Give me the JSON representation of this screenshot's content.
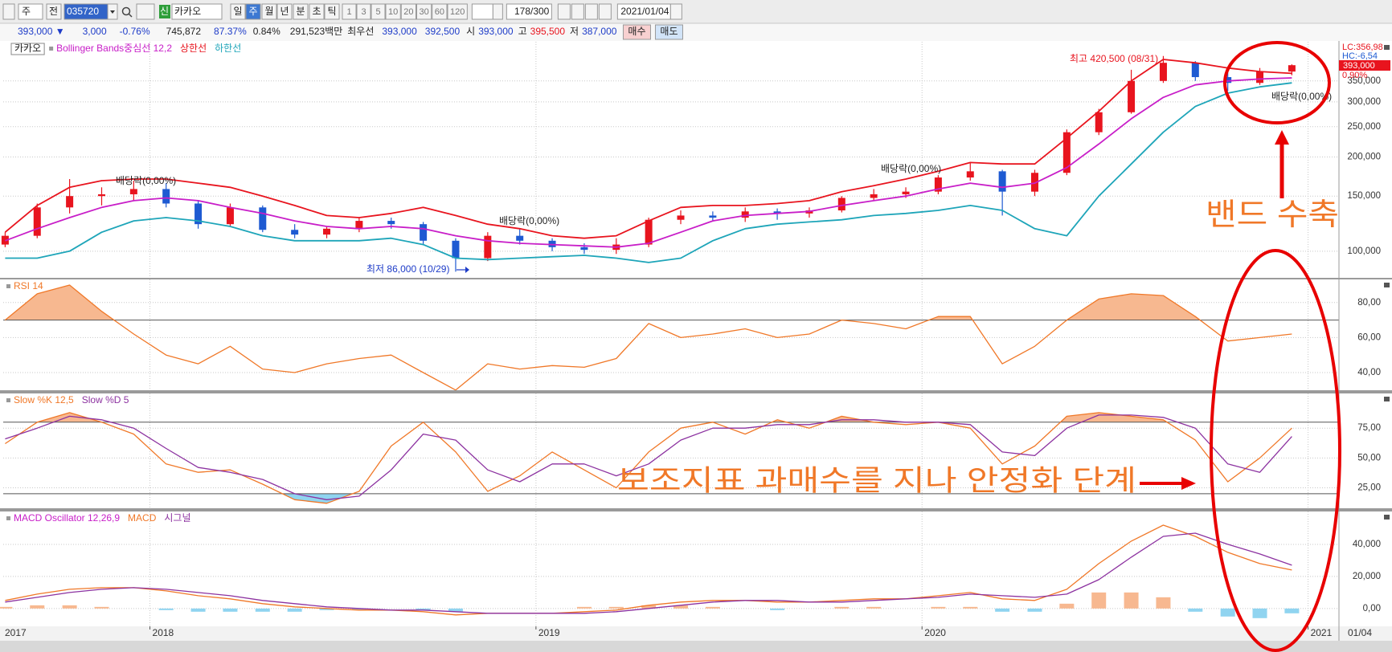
{
  "toolbar": {
    "period_type": "주",
    "scope": "전",
    "code": "035720",
    "market_badge": "신",
    "name": "카카오",
    "periods": [
      "일",
      "주",
      "월",
      "년",
      "분",
      "초",
      "틱"
    ],
    "intervals": [
      "1",
      "3",
      "5",
      "10",
      "20",
      "30",
      "60",
      "120"
    ],
    "count": "178/300",
    "date": "2021/01/04"
  },
  "quote": {
    "price": "393,000 ▼",
    "change": "3,000",
    "change_pct": "-0.76%",
    "volume": "745,872",
    "volume_ratio": "87.37%",
    "turnover": "0.84%",
    "trade_value": "291,523백만",
    "best_label": "최우선",
    "ask": "393,000",
    "bid": "392,500",
    "open_label": "시",
    "open": "393,000",
    "high_label": "고",
    "high": "395,500",
    "low_label": "저",
    "low": "387,000",
    "buy": "매수",
    "sell": "매도"
  },
  "time_axis": {
    "xlim": [
      2017.62,
      2021.08
    ],
    "xticks": [
      2018,
      2019,
      2020,
      2021
    ],
    "start_label": "2017",
    "end_label": "01/04"
  },
  "chart_data": [
    {
      "type": "candlestick",
      "title": "카카오",
      "log_scale": true,
      "grid": true,
      "x": [
        2017.625,
        2017.708,
        2017.792,
        2017.875,
        2017.958,
        2018.042,
        2018.125,
        2018.208,
        2018.292,
        2018.375,
        2018.458,
        2018.542,
        2018.625,
        2018.708,
        2018.792,
        2018.875,
        2018.958,
        2019.042,
        2019.125,
        2019.208,
        2019.292,
        2019.375,
        2019.458,
        2019.542,
        2019.625,
        2019.708,
        2019.792,
        2019.875,
        2019.958,
        2020.042,
        2020.125,
        2020.208,
        2020.292,
        2020.375,
        2020.458,
        2020.542,
        2020.625,
        2020.708,
        2020.792,
        2020.875,
        2020.958
      ],
      "open": [
        105000,
        112000,
        138000,
        150000,
        152000,
        158000,
        142000,
        122000,
        138000,
        117000,
        113000,
        118000,
        125000,
        122000,
        108000,
        95000,
        112000,
        108000,
        103000,
        101000,
        105000,
        126000,
        130000,
        128000,
        134000,
        132000,
        135000,
        148000,
        152000,
        155000,
        172000,
        180000,
        155000,
        178000,
        240000,
        278000,
        350000,
        400000,
        360000,
        345000,
        375000
      ],
      "high": [
        115000,
        142000,
        170000,
        160000,
        168000,
        165000,
        145000,
        142000,
        140000,
        122000,
        120000,
        128000,
        128000,
        124000,
        110000,
        115000,
        118000,
        110000,
        106000,
        110000,
        128000,
        135000,
        134000,
        138000,
        137000,
        138000,
        150000,
        158000,
        160000,
        175000,
        192000,
        182000,
        182000,
        245000,
        285000,
        380000,
        420500,
        405000,
        375000,
        385000,
        395500
      ],
      "low": [
        103000,
        110000,
        132000,
        140000,
        145000,
        138000,
        118000,
        120000,
        115000,
        110000,
        110000,
        115000,
        118000,
        105000,
        86000,
        93000,
        105000,
        100000,
        98000,
        98000,
        103000,
        122000,
        125000,
        124000,
        126000,
        128000,
        133000,
        145000,
        148000,
        152000,
        168000,
        130000,
        150000,
        175000,
        235000,
        275000,
        345000,
        350000,
        325000,
        340000,
        365000
      ],
      "close": [
        112000,
        138000,
        150000,
        152000,
        158000,
        142000,
        122000,
        138000,
        117000,
        113000,
        118000,
        125000,
        122000,
        108000,
        95000,
        112000,
        108000,
        103000,
        101000,
        105000,
        126000,
        130000,
        128000,
        134000,
        132000,
        135000,
        148000,
        152000,
        155000,
        172000,
        180000,
        155000,
        178000,
        240000,
        278000,
        350000,
        400000,
        360000,
        345000,
        375000,
        393000
      ],
      "up_color": "#e8141e",
      "down_color": "#1e5ad2",
      "series": [
        {
          "name": "Bollinger Bands중심선 12,2",
          "color": "#c81ec8",
          "values": [
            108000,
            118000,
            128000,
            138000,
            145000,
            148000,
            145000,
            138000,
            132000,
            125000,
            120000,
            118000,
            120000,
            118000,
            112000,
            108000,
            106000,
            105000,
            104000,
            103000,
            106000,
            115000,
            125000,
            130000,
            132000,
            134000,
            140000,
            145000,
            150000,
            158000,
            165000,
            160000,
            165000,
            185000,
            220000,
            265000,
            310000,
            340000,
            350000,
            355000,
            358000
          ]
        },
        {
          "name": "상한선",
          "color": "#e8141e",
          "values": [
            115000,
            140000,
            160000,
            168000,
            170000,
            170000,
            165000,
            160000,
            150000,
            140000,
            130000,
            128000,
            132000,
            138000,
            130000,
            122000,
            118000,
            112000,
            110000,
            112000,
            125000,
            138000,
            140000,
            140000,
            142000,
            145000,
            155000,
            162000,
            170000,
            180000,
            192000,
            190000,
            190000,
            230000,
            280000,
            350000,
            410000,
            400000,
            385000,
            375000,
            370000
          ]
        },
        {
          "name": "하한선",
          "color": "#1ea5b9",
          "values": [
            95000,
            95000,
            100000,
            115000,
            125000,
            128000,
            125000,
            120000,
            112000,
            108000,
            108000,
            108000,
            110000,
            105000,
            95000,
            94000,
            95000,
            96000,
            97000,
            95000,
            92000,
            95000,
            108000,
            118000,
            122000,
            124000,
            126000,
            130000,
            132000,
            135000,
            140000,
            135000,
            118000,
            112000,
            150000,
            190000,
            240000,
            290000,
            320000,
            335000,
            345000
          ]
        }
      ],
      "ylim": [
        82200,
        467000
      ],
      "yticks": [
        {
          "value": 100000,
          "label": "100,000"
        },
        {
          "value": 150000,
          "label": "150,000"
        },
        {
          "value": 200000,
          "label": "200,000"
        },
        {
          "value": 250000,
          "label": "250,000"
        },
        {
          "value": 300000,
          "label": "300,000"
        },
        {
          "value": 350000,
          "label": "350,000"
        }
      ],
      "price_tag": "393,000",
      "price_change": "0.90%",
      "lc": "LC:356,98",
      "hc": "HC:-6,54",
      "annotations": {
        "high": "최고 420,500 (08/31)",
        "low": "최저 86,000 (10/29)",
        "dividends": [
          "배당락(0,00%)",
          "배당락(0,00%)",
          "배당락(0,00%)",
          "배당락(0,00%)"
        ]
      }
    },
    {
      "type": "line",
      "grid": true,
      "x": [
        2017.625,
        2017.708,
        2017.792,
        2017.875,
        2017.958,
        2018.042,
        2018.125,
        2018.208,
        2018.292,
        2018.375,
        2018.458,
        2018.542,
        2018.625,
        2018.708,
        2018.792,
        2018.875,
        2018.958,
        2019.042,
        2019.125,
        2019.208,
        2019.292,
        2019.375,
        2019.458,
        2019.542,
        2019.625,
        2019.708,
        2019.792,
        2019.875,
        2019.958,
        2020.042,
        2020.125,
        2020.208,
        2020.292,
        2020.375,
        2020.458,
        2020.542,
        2020.625,
        2020.708,
        2020.792,
        2020.875,
        2020.958
      ],
      "series": [
        {
          "name": "RSI 14",
          "color": "#f07828",
          "values": [
            70,
            85,
            90,
            75,
            62,
            50,
            45,
            55,
            42,
            40,
            45,
            48,
            50,
            40,
            30,
            45,
            42,
            44,
            43,
            48,
            68,
            60,
            62,
            65,
            60,
            62,
            70,
            68,
            65,
            72,
            72,
            45,
            55,
            70,
            82,
            85,
            84,
            72,
            58,
            60,
            62
          ]
        }
      ],
      "ylim": [
        29.9,
        93.2
      ],
      "yticks": [
        {
          "value": 40,
          "label": "40,00"
        },
        {
          "value": 60,
          "label": "60,00"
        },
        {
          "value": 80,
          "label": "80,00"
        }
      ],
      "levels": [
        70
      ],
      "fill_above": "#f7b890"
    },
    {
      "type": "line",
      "grid": true,
      "x": [
        2017.625,
        2017.708,
        2017.792,
        2017.875,
        2017.958,
        2018.042,
        2018.125,
        2018.208,
        2018.292,
        2018.375,
        2018.458,
        2018.542,
        2018.625,
        2018.708,
        2018.792,
        2018.875,
        2018.958,
        2019.042,
        2019.125,
        2019.208,
        2019.292,
        2019.375,
        2019.458,
        2019.542,
        2019.625,
        2019.708,
        2019.792,
        2019.875,
        2019.958,
        2020.042,
        2020.125,
        2020.208,
        2020.292,
        2020.375,
        2020.458,
        2020.542,
        2020.625,
        2020.708,
        2020.792,
        2020.875,
        2020.958
      ],
      "series": [
        {
          "name": "Slow %K 12,5",
          "color": "#f07828",
          "values": [
            62,
            80,
            88,
            80,
            70,
            45,
            38,
            40,
            28,
            15,
            12,
            22,
            60,
            80,
            55,
            22,
            35,
            55,
            40,
            25,
            55,
            75,
            80,
            70,
            82,
            75,
            85,
            80,
            78,
            80,
            75,
            45,
            60,
            85,
            88,
            85,
            82,
            65,
            30,
            50,
            75
          ]
        },
        {
          "name": "Slow %D 5",
          "color": "#8c32a0",
          "values": [
            66,
            75,
            85,
            82,
            75,
            58,
            42,
            38,
            32,
            20,
            15,
            18,
            40,
            70,
            65,
            40,
            30,
            45,
            45,
            35,
            45,
            65,
            75,
            75,
            78,
            78,
            82,
            82,
            80,
            80,
            78,
            55,
            52,
            75,
            86,
            86,
            84,
            75,
            45,
            38,
            68
          ]
        }
      ],
      "ylim": [
        7.8,
        104.1
      ],
      "yticks": [
        {
          "value": 25,
          "label": "25,00"
        },
        {
          "value": 50,
          "label": "50,00"
        },
        {
          "value": 75,
          "label": "75,00"
        }
      ],
      "levels": [
        80,
        20
      ],
      "fill_above": "#f7b890",
      "fill_below": "#90d4f0"
    },
    {
      "type": "combo",
      "grid": true,
      "x": [
        2017.625,
        2017.708,
        2017.792,
        2017.875,
        2017.958,
        2018.042,
        2018.125,
        2018.208,
        2018.292,
        2018.375,
        2018.458,
        2018.542,
        2018.625,
        2018.708,
        2018.792,
        2018.875,
        2018.958,
        2019.042,
        2019.125,
        2019.208,
        2019.292,
        2019.375,
        2019.458,
        2019.542,
        2019.625,
        2019.708,
        2019.792,
        2019.875,
        2019.958,
        2020.042,
        2020.125,
        2020.208,
        2020.292,
        2020.375,
        2020.458,
        2020.542,
        2020.625,
        2020.708,
        2020.792,
        2020.875,
        2020.958
      ],
      "series": [
        {
          "name": "MACD Oscillator 12,26,9",
          "color": "#c81ec8",
          "style": "bar",
          "up_color": "#f7b890",
          "down_color": "#90d4f0",
          "values": [
            1000,
            2000,
            2000,
            1000,
            0,
            -1000,
            -2000,
            -2000,
            -2000,
            -2000,
            -1000,
            -1000,
            0,
            -1000,
            -2000,
            0,
            0,
            0,
            1000,
            1000,
            2000,
            2000,
            1000,
            0,
            -1000,
            0,
            1000,
            1000,
            0,
            1000,
            1000,
            -2000,
            -2000,
            3000,
            10000,
            10000,
            7000,
            -2000,
            -5000,
            -6000,
            -3000
          ]
        },
        {
          "name": "MACD",
          "color": "#f07828",
          "style": "line",
          "values": [
            5000,
            9000,
            12000,
            13000,
            13000,
            11000,
            8000,
            6000,
            3000,
            1000,
            0,
            -1000,
            -1000,
            -2000,
            -4000,
            -3000,
            -3000,
            -3000,
            -2000,
            -1000,
            2000,
            4000,
            5000,
            5000,
            4000,
            4000,
            5000,
            6000,
            6000,
            8000,
            10000,
            6000,
            5000,
            12000,
            28000,
            42000,
            52000,
            45000,
            35000,
            28000,
            24000
          ]
        },
        {
          "name": "시그널",
          "color": "#8c32a0",
          "style": "line",
          "values": [
            4000,
            7000,
            10000,
            12000,
            13000,
            12000,
            10000,
            8000,
            5000,
            3000,
            1000,
            0,
            -1000,
            -1000,
            -2000,
            -3000,
            -3000,
            -3000,
            -3000,
            -2000,
            0,
            2000,
            4000,
            5000,
            5000,
            4000,
            4000,
            5000,
            6000,
            7000,
            9000,
            8000,
            7000,
            9000,
            18000,
            32000,
            45000,
            47000,
            40000,
            34000,
            27000
          ]
        }
      ],
      "ylim": [
        -11100,
        60500
      ],
      "yticks": [
        {
          "value": 0,
          "label": "0,00"
        },
        {
          "value": 20000,
          "label": "20,000"
        },
        {
          "value": 40000,
          "label": "40,000"
        }
      ]
    }
  ],
  "callouts": [
    "밴드 수축",
    "보조지표 과매수를 지나 안정화 단계"
  ]
}
